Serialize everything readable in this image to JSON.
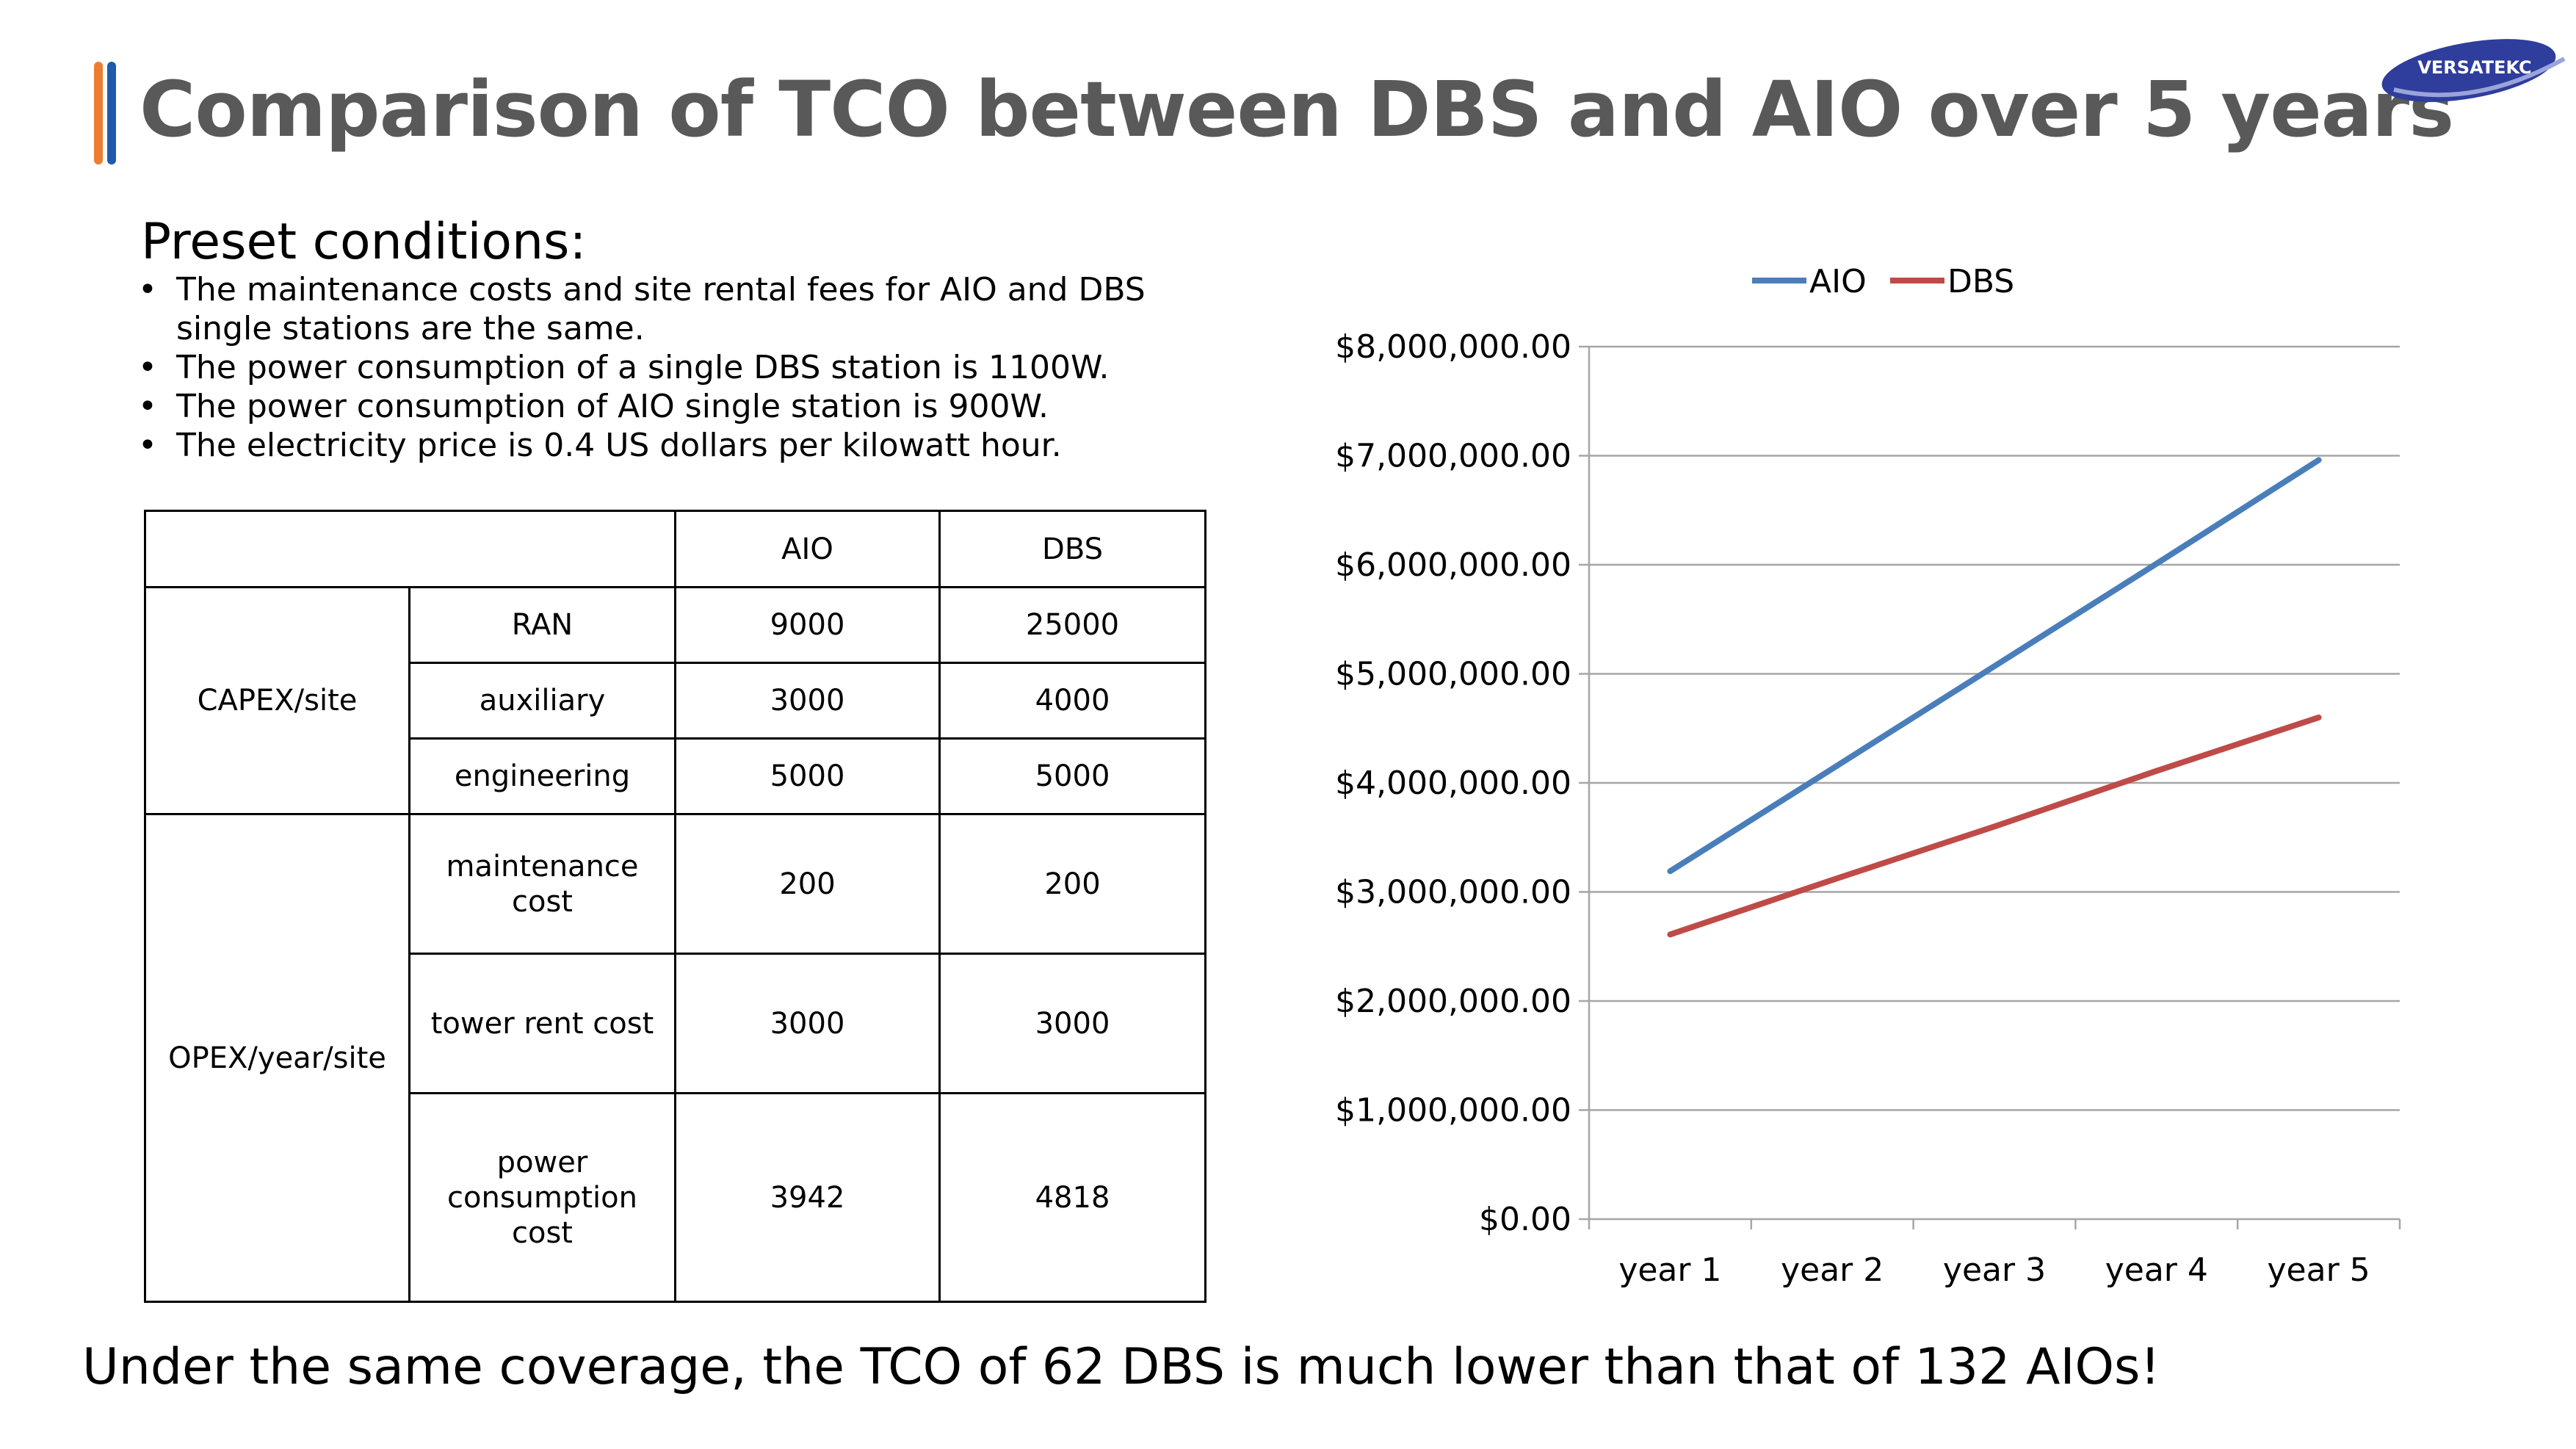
{
  "slide": {
    "title": "Comparison of TCO between DBS and AIO over 5 years",
    "logo_text": "VERSATEKC",
    "preset_heading": "Preset conditions:",
    "conditions": [
      "The maintenance costs and site rental fees for AIO and DBS single stations are the same.",
      "The power consumption of a single DBS station is 1100W.",
      "The power consumption of AIO single station is 900W.",
      "The electricity price is 0.4 US dollars per kilowatt hour."
    ],
    "footer": "Under the same coverage, the TCO of 62 DBS is much lower than that of 132 AIOs!"
  },
  "table": {
    "header": {
      "aio": "AIO",
      "dbs": "DBS"
    },
    "capex": {
      "label": "CAPEX/site",
      "rows": [
        {
          "label": "RAN",
          "aio": "9000",
          "dbs": "25000"
        },
        {
          "label": "auxiliary",
          "aio": "3000",
          "dbs": "4000"
        },
        {
          "label": "engineering",
          "aio": "5000",
          "dbs": "5000"
        }
      ]
    },
    "opex": {
      "label": "OPEX/year/site",
      "rows": [
        {
          "label": "maintenance cost",
          "aio": "200",
          "dbs": "200"
        },
        {
          "label": "tower rent cost",
          "aio": "3000",
          "dbs": "3000"
        },
        {
          "label": "power consumption cost",
          "aio": "3942",
          "dbs": "4818"
        }
      ]
    }
  },
  "chart_data": {
    "type": "line",
    "categories": [
      "year 1",
      "year 2",
      "year 3",
      "year 4",
      "year 5"
    ],
    "series": [
      {
        "name": "AIO",
        "color": "#4A7EBB",
        "values": [
          3190000,
          4130000,
          5070000,
          6010000,
          6960000
        ]
      },
      {
        "name": "DBS",
        "color": "#BE4B48",
        "values": [
          2610000,
          3110000,
          3600000,
          4110000,
          4600000
        ]
      }
    ],
    "ylim": [
      0,
      8000000
    ],
    "yticks": [
      0,
      1000000,
      2000000,
      3000000,
      4000000,
      5000000,
      6000000,
      7000000,
      8000000
    ],
    "ytick_labels": [
      "$0.00",
      "$1,000,000.00",
      "$2,000,000.00",
      "$3,000,000.00",
      "$4,000,000.00",
      "$5,000,000.00",
      "$6,000,000.00",
      "$7,000,000.00",
      "$8,000,000.00"
    ],
    "grid": true,
    "legend": "top"
  }
}
